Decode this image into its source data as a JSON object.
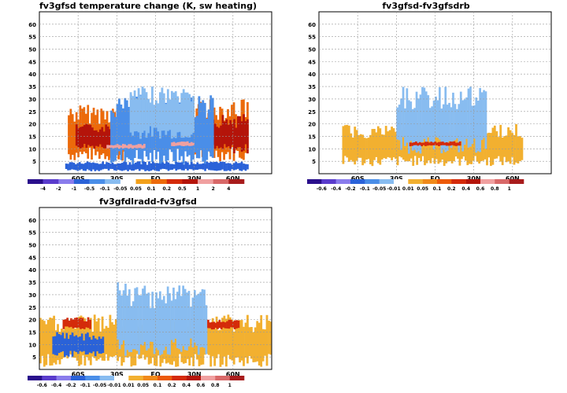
{
  "chart_data": [
    {
      "type": "heatmap",
      "title": "fv3gfsd temperature change (K, sw heating)",
      "xlabel": "",
      "ylabel": "",
      "xlim": [
        -90,
        90
      ],
      "ylim": [
        0,
        65
      ],
      "x_ticks": [
        {
          "value": -60,
          "label": "60S"
        },
        {
          "value": -30,
          "label": "30S"
        },
        {
          "value": 0,
          "label": "EQ"
        },
        {
          "value": 30,
          "label": "30N"
        },
        {
          "value": 60,
          "label": "60N"
        }
      ],
      "y_ticks": [
        5,
        10,
        15,
        20,
        25,
        30,
        35,
        40,
        45,
        50,
        55,
        60
      ],
      "grid": true,
      "colorbar": {
        "labels": [
          "-4",
          "-2",
          "-1",
          "-0.5",
          "-0.1",
          "-0.05",
          "0.05",
          "0.1",
          "0.2",
          "0.5",
          "1",
          "2",
          "4"
        ],
        "colors": [
          "#2a0f8c",
          "#5a3ccc",
          "#8a7cec",
          "#2a62d8",
          "#4a8ee8",
          "#88bcf0",
          "#ffffff",
          "#f2a01a",
          "#ec6a0a",
          "#d42a0a",
          "#b4140a",
          "#f0a0a0",
          "#d86868",
          "#a81c1c"
        ]
      },
      "values_description": "cooling (blue) throughout tropical troposphere up to ~35, heating (orange/red) at 10-30 in both extratropics",
      "regions": [
        {
          "x0": -68,
          "x1": -22,
          "y0": 5,
          "y1": 28,
          "level": 8
        },
        {
          "x0": 28,
          "x1": 72,
          "y0": 5,
          "y1": 30,
          "level": 8
        },
        {
          "x0": -62,
          "x1": -30,
          "y0": 10,
          "y1": 20,
          "level": 10
        },
        {
          "x0": 38,
          "x1": 72,
          "y0": 8,
          "y1": 24,
          "level": 10
        },
        {
          "x0": -35,
          "x1": 45,
          "y0": 3,
          "y1": 32,
          "level": 4
        },
        {
          "x0": -20,
          "x1": 30,
          "y0": 14,
          "y1": 35,
          "level": 5
        },
        {
          "x0": -70,
          "x1": 72,
          "y0": 1,
          "y1": 5,
          "level": 3
        },
        {
          "x0": -38,
          "x1": -8,
          "y0": 10,
          "y1": 12,
          "level": 11
        },
        {
          "x0": 12,
          "x1": 30,
          "y0": 11,
          "y1": 13,
          "level": 11
        }
      ]
    },
    {
      "type": "heatmap",
      "title": "fv3gfsd-fv3gfsdrb",
      "xlabel": "",
      "ylabel": "",
      "xlim": [
        -90,
        90
      ],
      "ylim": [
        0,
        65
      ],
      "x_ticks": [
        {
          "value": -60,
          "label": "60S"
        },
        {
          "value": -30,
          "label": "30S"
        },
        {
          "value": 0,
          "label": "EQ"
        },
        {
          "value": 30,
          "label": "30N"
        },
        {
          "value": 60,
          "label": "60N"
        }
      ],
      "y_ticks": [
        5,
        10,
        15,
        20,
        25,
        30,
        35,
        40,
        45,
        50,
        55,
        60
      ],
      "grid": true,
      "colorbar": {
        "labels": [
          "-0.6",
          "-0.4",
          "-0.2",
          "-0.1",
          "-0.05",
          "-0.01",
          "0.01",
          "0.05",
          "0.1",
          "0.2",
          "0.4",
          "0.6",
          "0.8",
          "1"
        ],
        "colors": [
          "#2a0f8c",
          "#5a3ccc",
          "#8a7cec",
          "#2a62d8",
          "#4a8ee8",
          "#88bcf0",
          "#ffffff",
          "#f2b030",
          "#f08a1a",
          "#ec5a0a",
          "#d42a0a",
          "#b4140a",
          "#f0a0a0",
          "#d86868",
          "#a81c1c"
        ]
      },
      "values_description": "small-amplitude scattered differences; slight positive band near 12 at the equator",
      "regions": [
        {
          "x0": -72,
          "x1": 68,
          "y0": 3,
          "y1": 20,
          "level": 7
        },
        {
          "x0": -30,
          "x1": 40,
          "y0": 8,
          "y1": 35,
          "level": 5
        },
        {
          "x0": -20,
          "x1": 20,
          "y0": 11,
          "y1": 13,
          "level": 10
        }
      ]
    },
    {
      "type": "heatmap",
      "title": "fv3gfdlradd-fv3gfsd",
      "xlabel": "",
      "ylabel": "",
      "xlim": [
        -90,
        90
      ],
      "ylim": [
        0,
        65
      ],
      "x_ticks": [
        {
          "value": -60,
          "label": "60S"
        },
        {
          "value": -30,
          "label": "30S"
        },
        {
          "value": 0,
          "label": "EQ"
        },
        {
          "value": 30,
          "label": "30N"
        },
        {
          "value": 60,
          "label": "60N"
        }
      ],
      "y_ticks": [
        5,
        10,
        15,
        20,
        25,
        30,
        35,
        40,
        45,
        50,
        55,
        60
      ],
      "grid": true,
      "colorbar": {
        "labels": [
          "-0.6",
          "-0.4",
          "-0.2",
          "-0.1",
          "-0.05",
          "-0.01",
          "0.01",
          "0.05",
          "0.1",
          "0.2",
          "0.4",
          "0.6",
          "0.8",
          "1"
        ],
        "colors": [
          "#2a0f8c",
          "#5a3ccc",
          "#8a7cec",
          "#2a62d8",
          "#4a8ee8",
          "#88bcf0",
          "#ffffff",
          "#f2b030",
          "#f08a1a",
          "#ec5a0a",
          "#d42a0a",
          "#b4140a",
          "#f0a0a0",
          "#d86868",
          "#a81c1c"
        ]
      },
      "values_description": "scattered differences, positive (red) bands near 17-20 at ~60S and ~50N",
      "regions": [
        {
          "x0": -90,
          "x1": 90,
          "y0": 1,
          "y1": 22,
          "level": 7
        },
        {
          "x0": -30,
          "x1": 40,
          "y0": 5,
          "y1": 35,
          "level": 5
        },
        {
          "x0": -72,
          "x1": -50,
          "y0": 16,
          "y1": 21,
          "level": 10
        },
        {
          "x0": 40,
          "x1": 65,
          "y0": 16,
          "y1": 20,
          "level": 10
        },
        {
          "x0": -80,
          "x1": -40,
          "y0": 5,
          "y1": 15,
          "level": 3
        }
      ]
    }
  ]
}
